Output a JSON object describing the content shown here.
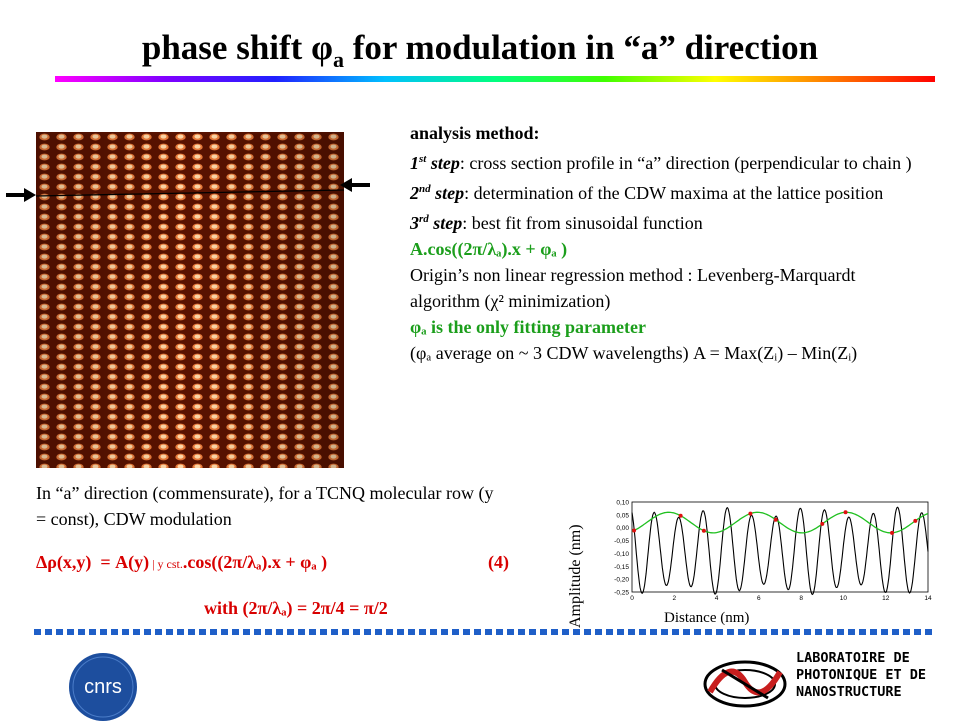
{
  "slide": {
    "title_pre": "phase shift ",
    "title_phi": "φ",
    "title_sub": "a",
    "title_post": " for modulation  in “a” direction"
  },
  "method": {
    "heading": "analysis method:",
    "step1_num": "1",
    "step1_sup": "st",
    "step1_word": " step",
    "step1_text": ": cross section profile in “a” direction (perpendicular to chain )",
    "step2_num": "2",
    "step2_sup": "nd",
    "step2_word": " step",
    "step2_text": ": determination of the CDW maxima at the lattice position",
    "step3_num": "3",
    "step3_sup": "rd",
    "step3_word": " step",
    "step3_text": ": best fit from sinusoidal function",
    "formula": "A.cos((2π/λₐ).x + φₐ )",
    "regression": "Origin’s non linear regression method : Levenberg-Marquardt algorithm (χ² minimization)",
    "fit_param": "φₐ is the only fitting parameter",
    "average_note": "(φₐ average on ~ 3 CDW wavelengths)  A = Max(Zᵢ) – Min(Zᵢ)"
  },
  "body": {
    "paragraph": "In “a” direction (commensurate), for a TCNQ molecular  row (y = const), CDW modulation",
    "eq_main": "Δρ(x,y)  = A(y)",
    "eq_small": " | y cst.",
    "eq_rest": ".cos((2π/λₐ).x + φₐ )",
    "eq_number": "(4)",
    "with_line": "with  (2π/λₐ) = 2π/4 = π/2"
  },
  "plot": {
    "ylabel": "Amplitude (nm)",
    "xlabel": "Distance (nm)",
    "y_ticks": [
      "0,10",
      "0,05",
      "0,00",
      "-0,05",
      "-0,10",
      "-0,15",
      "-0,20",
      "-0,25"
    ],
    "x_ticks": [
      "0",
      "2",
      "4",
      "6",
      "8",
      "10",
      "12",
      "14"
    ]
  },
  "footer": {
    "cnrs_logo": "cnrs",
    "lab_name": "LABORATOIRE DE\nPHOTONIQUE ET DE\nNANOSTRUCTURE"
  }
}
